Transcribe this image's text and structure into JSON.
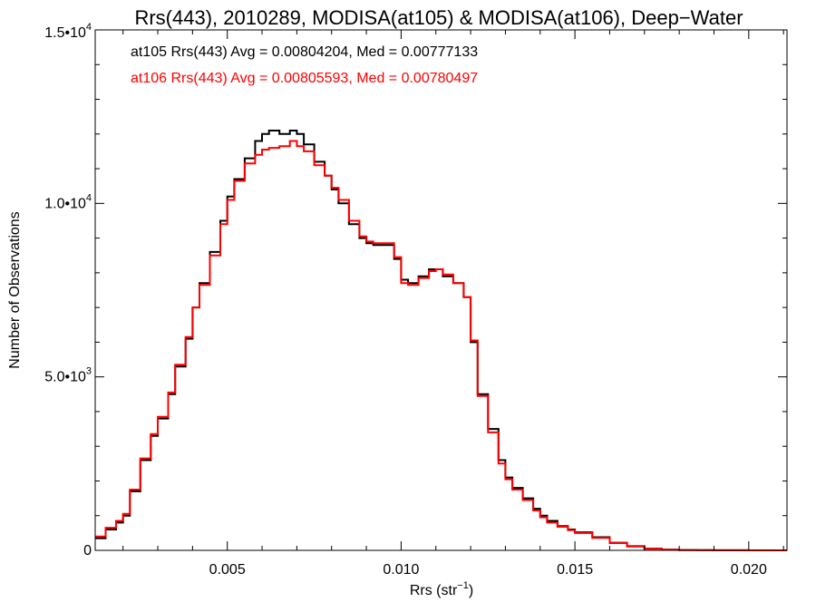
{
  "chart_data": {
    "type": "line",
    "title": "Rrs(443), 2010289, MODISA(at105) & MODISA(at106), Deep−Water",
    "xlabel": "Rrs (str",
    "xlabel_sup": "−1",
    "xlabel_suffix": ")",
    "ylabel": "Number of Observations",
    "xlim": [
      0.0012,
      0.0211
    ],
    "ylim": [
      0,
      15000
    ],
    "x_ticks": [
      {
        "value": 0.005,
        "label": "0.005"
      },
      {
        "value": 0.01,
        "label": "0.010"
      },
      {
        "value": 0.015,
        "label": "0.015"
      },
      {
        "value": 0.02,
        "label": "0.020"
      }
    ],
    "y_ticks": [
      {
        "value": 0,
        "label": "0",
        "sup": ""
      },
      {
        "value": 5000,
        "label": "5.0•10",
        "sup": "3"
      },
      {
        "value": 10000,
        "label": "1.0•10",
        "sup": "4"
      },
      {
        "value": 15000,
        "label": "1.5•10",
        "sup": "4"
      }
    ],
    "legend_position": "top-left",
    "series": [
      {
        "name": "at105",
        "label": "at105 Rrs(443) Avg = 0.00804204, Med = 0.00777133",
        "color": "#000000",
        "x": [
          0.0012,
          0.0015,
          0.0018,
          0.002,
          0.0022,
          0.0025,
          0.0028,
          0.003,
          0.0033,
          0.0035,
          0.0038,
          0.004,
          0.0042,
          0.0045,
          0.0048,
          0.005,
          0.0052,
          0.0055,
          0.0058,
          0.006,
          0.0062,
          0.0065,
          0.0068,
          0.007,
          0.0072,
          0.0075,
          0.0078,
          0.008,
          0.0082,
          0.0085,
          0.0088,
          0.009,
          0.0092,
          0.0095,
          0.0098,
          0.01,
          0.0102,
          0.0105,
          0.0108,
          0.011,
          0.0112,
          0.0115,
          0.0118,
          0.012,
          0.0122,
          0.0125,
          0.0128,
          0.013,
          0.0132,
          0.0135,
          0.0138,
          0.014,
          0.0142,
          0.0145,
          0.0148,
          0.015,
          0.0155,
          0.016,
          0.0165,
          0.017,
          0.0175,
          0.018,
          0.0185,
          0.019,
          0.02,
          0.0211
        ],
        "values": [
          350,
          600,
          800,
          1000,
          1700,
          2600,
          3300,
          3800,
          4500,
          5300,
          6100,
          7000,
          7700,
          8600,
          9500,
          10200,
          10700,
          11300,
          11800,
          12000,
          12100,
          12000,
          12100,
          12000,
          11700,
          11200,
          10800,
          10400,
          10000,
          9400,
          9000,
          8850,
          8800,
          8800,
          8400,
          7800,
          7700,
          7900,
          8100,
          8100,
          7900,
          7700,
          7300,
          6000,
          4500,
          3500,
          2600,
          2100,
          1800,
          1500,
          1200,
          1000,
          850,
          700,
          600,
          520,
          380,
          220,
          120,
          50,
          20,
          10,
          5,
          3,
          1,
          0
        ]
      },
      {
        "name": "at106",
        "label": "at106 Rrs(443) Avg = 0.00805593, Med = 0.00780497",
        "color": "#ff0000",
        "x": [
          0.0012,
          0.0015,
          0.0018,
          0.002,
          0.0022,
          0.0025,
          0.0028,
          0.003,
          0.0033,
          0.0035,
          0.0038,
          0.004,
          0.0042,
          0.0045,
          0.0048,
          0.005,
          0.0052,
          0.0055,
          0.0058,
          0.006,
          0.0062,
          0.0065,
          0.0068,
          0.007,
          0.0072,
          0.0075,
          0.0078,
          0.008,
          0.0082,
          0.0085,
          0.0088,
          0.009,
          0.0092,
          0.0095,
          0.0098,
          0.01,
          0.0102,
          0.0105,
          0.0108,
          0.011,
          0.0112,
          0.0115,
          0.0118,
          0.012,
          0.0122,
          0.0125,
          0.0128,
          0.013,
          0.0132,
          0.0135,
          0.0138,
          0.014,
          0.0142,
          0.0145,
          0.0148,
          0.015,
          0.0155,
          0.016,
          0.0165,
          0.017,
          0.0175,
          0.018,
          0.0185,
          0.019,
          0.02,
          0.0211
        ],
        "values": [
          400,
          650,
          850,
          1050,
          1750,
          2650,
          3350,
          3850,
          4550,
          5350,
          6150,
          7000,
          7650,
          8500,
          9400,
          10100,
          10650,
          11150,
          11400,
          11550,
          11600,
          11650,
          11800,
          11650,
          11500,
          11100,
          10800,
          10450,
          10100,
          9500,
          9050,
          8900,
          8850,
          8850,
          8450,
          7700,
          7650,
          7850,
          8050,
          8100,
          7950,
          7700,
          7300,
          6050,
          4450,
          3400,
          2500,
          2050,
          1750,
          1450,
          1150,
          950,
          800,
          680,
          580,
          500,
          360,
          210,
          110,
          45,
          18,
          9,
          4,
          2,
          1,
          0
        ]
      }
    ]
  }
}
